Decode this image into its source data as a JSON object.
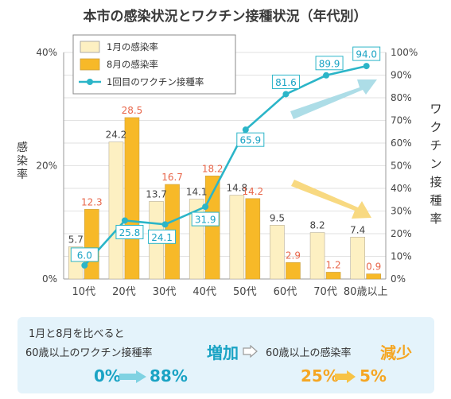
{
  "chart_data": {
    "type": "bar+line",
    "title": "本市の感染状況とワクチン接種状況（年代別）",
    "categories": [
      "10代",
      "20代",
      "30代",
      "40代",
      "50代",
      "60代",
      "70代",
      "80歳以上"
    ],
    "series": [
      {
        "name": "1月の感染率",
        "type": "bar",
        "axis": "left",
        "color": "#fdf0c2",
        "values": [
          5.7,
          24.2,
          13.7,
          14.1,
          14.8,
          9.5,
          8.2,
          7.4
        ]
      },
      {
        "name": "8月の感染率",
        "type": "bar",
        "axis": "left",
        "color": "#f7b928",
        "values": [
          12.3,
          28.5,
          16.7,
          18.2,
          14.2,
          2.9,
          1.2,
          0.9
        ]
      },
      {
        "name": "1回目のワクチン接種率",
        "type": "line",
        "axis": "right",
        "color": "#2bb5c8",
        "values": [
          6.0,
          25.8,
          24.1,
          31.9,
          65.9,
          81.6,
          89.9,
          94.0
        ]
      }
    ],
    "ylabel": "感染率",
    "ylabel_right": "ワクチン接種率",
    "ylim": [
      0,
      40
    ],
    "ylim_right": [
      0,
      100
    ],
    "yticks": [
      "0%",
      "20%",
      "40%"
    ],
    "yticks_right": [
      "0%",
      "10%",
      "20%",
      "30%",
      "40%",
      "50%",
      "60%",
      "70%",
      "80%",
      "90%",
      "100%"
    ],
    "legend_position": "top-left",
    "grid": true
  },
  "summary": {
    "line1": "1月と8月を比べると",
    "line2": "60歳以上のワクチン接種率",
    "increase_word": "増加",
    "vacc_from": "0%",
    "vacc_to": "88%",
    "line3": "60歳以上の感染率",
    "decrease_word": "減少",
    "inf_from": "25%",
    "inf_to": "5%"
  },
  "colors": {
    "jan_bar": "#fdf0c2",
    "aug_bar": "#f7b928",
    "vaccine_line": "#2bb5c8",
    "aug_label": "#e8664a",
    "summary_bg": "#e4f3fb",
    "orange_text": "#f5a623",
    "blue_text": "#1aa3c4"
  }
}
